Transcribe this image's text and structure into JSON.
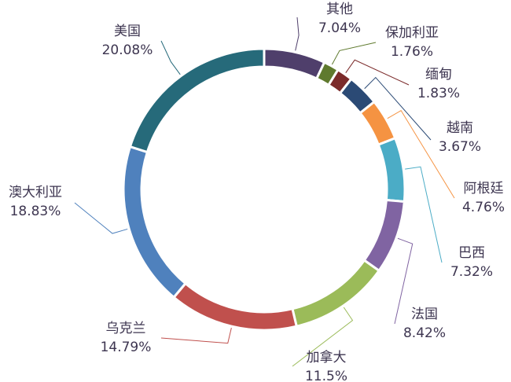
{
  "chart_data": {
    "type": "donut",
    "categories": [
      "其他",
      "保加利亚",
      "缅甸",
      "越南",
      "阿根廷",
      "巴西",
      "法国",
      "加拿大",
      "乌克兰",
      "澳大利亚",
      "美国"
    ],
    "values": [
      7.04,
      1.76,
      1.83,
      3.67,
      4.76,
      7.32,
      8.42,
      11.5,
      14.79,
      18.83,
      20.08
    ],
    "value_labels": [
      "7.04%",
      "1.76%",
      "1.83%",
      "3.67%",
      "4.76%",
      "7.32%",
      "8.42%",
      "11.5%",
      "14.79%",
      "18.83%",
      "20.08%"
    ],
    "colors": [
      "#4f3f6b",
      "#5f7a2e",
      "#7b2a2a",
      "#2b4a75",
      "#f59342",
      "#4bacc6",
      "#8064a2",
      "#9bbb59",
      "#c0504d",
      "#4f81bd",
      "#266a7a"
    ]
  }
}
